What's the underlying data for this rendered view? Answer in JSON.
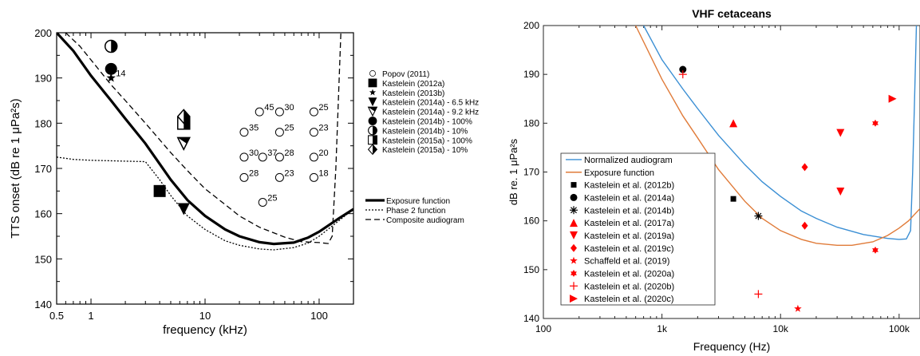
{
  "chart_data": [
    {
      "type": "scatter",
      "title": "",
      "xlabel": "frequency (kHz)",
      "ylabel": "TTS onset (dB re 1 μPa²s)",
      "xscale": "log",
      "xlim": [
        0.5,
        200
      ],
      "ylim": [
        140,
        200
      ],
      "x_ticks": [
        {
          "v": 0.5,
          "label": "0.5"
        },
        {
          "v": 1,
          "label": "1"
        },
        {
          "v": 10,
          "label": "10"
        },
        {
          "v": 100,
          "label": "100"
        }
      ],
      "y_ticks": [
        {
          "v": 140,
          "label": "140"
        },
        {
          "v": 150,
          "label": "150"
        },
        {
          "v": 160,
          "label": "160"
        },
        {
          "v": 170,
          "label": "170"
        },
        {
          "v": 180,
          "label": "180"
        },
        {
          "v": 190,
          "label": "190"
        },
        {
          "v": 200,
          "label": "200"
        }
      ],
      "legend_position": "right",
      "lines": [
        {
          "name": "Exposure function",
          "style": "solid-thick",
          "points": [
            [
              0.5,
              200
            ],
            [
              0.7,
              196
            ],
            [
              1,
              190.5
            ],
            [
              1.5,
              185
            ],
            [
              2,
              181
            ],
            [
              3,
              175.5
            ],
            [
              4,
              171
            ],
            [
              5,
              167.5
            ],
            [
              7,
              163
            ],
            [
              10,
              159.5
            ],
            [
              15,
              156.5
            ],
            [
              20,
              155
            ],
            [
              30,
              153.7
            ],
            [
              40,
              153.3
            ],
            [
              60,
              153.6
            ],
            [
              80,
              154.7
            ],
            [
              100,
              156
            ],
            [
              150,
              159
            ],
            [
              200,
              161
            ]
          ]
        },
        {
          "name": "Phase 2 function",
          "style": "dotted",
          "points": [
            [
              0.5,
              172.5
            ],
            [
              0.7,
              172
            ],
            [
              1,
              171.8
            ],
            [
              2,
              171.6
            ],
            [
              3,
              171.5
            ],
            [
              4,
              167.5
            ],
            [
              5,
              164
            ],
            [
              7,
              159.5
            ],
            [
              10,
              156.5
            ],
            [
              15,
              154
            ],
            [
              20,
              153
            ],
            [
              30,
              152.2
            ],
            [
              40,
              152
            ],
            [
              60,
              152.5
            ],
            [
              80,
              153.5
            ],
            [
              100,
              155
            ],
            [
              150,
              158.5
            ],
            [
              200,
              161
            ]
          ]
        },
        {
          "name": "Composite audiogram",
          "style": "dashed",
          "points": [
            [
              0.6,
              200
            ],
            [
              0.8,
              197
            ],
            [
              1,
              194
            ],
            [
              1.5,
              188.5
            ],
            [
              2,
              185
            ],
            [
              3,
              180
            ],
            [
              5,
              173.5
            ],
            [
              7,
              169.5
            ],
            [
              10,
              165.5
            ],
            [
              15,
              162
            ],
            [
              20,
              159.5
            ],
            [
              30,
              157
            ],
            [
              50,
              154.8
            ],
            [
              70,
              153.8
            ],
            [
              100,
              153.6
            ],
            [
              120,
              153.4
            ],
            [
              130,
              155
            ],
            [
              140,
              170
            ],
            [
              150,
              190
            ],
            [
              155,
              200
            ]
          ]
        }
      ],
      "series": [
        {
          "name": "Popov (2011)",
          "marker": "circle-open",
          "points": [
            {
              "x": 30,
              "y": 182.5,
              "label": "45"
            },
            {
              "x": 45,
              "y": 182.5,
              "label": "30"
            },
            {
              "x": 90,
              "y": 182.5,
              "label": "25"
            },
            {
              "x": 22,
              "y": 178,
              "label": "35"
            },
            {
              "x": 45,
              "y": 178,
              "label": "25"
            },
            {
              "x": 90,
              "y": 178,
              "label": "23"
            },
            {
              "x": 22,
              "y": 172.5,
              "label": "30"
            },
            {
              "x": 32,
              "y": 172.5,
              "label": "37"
            },
            {
              "x": 45,
              "y": 172.5,
              "label": "28"
            },
            {
              "x": 90,
              "y": 172.5,
              "label": "20"
            },
            {
              "x": 22,
              "y": 168,
              "label": "28"
            },
            {
              "x": 45,
              "y": 168,
              "label": "23"
            },
            {
              "x": 90,
              "y": 168,
              "label": "18"
            },
            {
              "x": 32,
              "y": 162.5,
              "label": "25"
            }
          ]
        },
        {
          "name": "Kastelein (2012a)",
          "marker": "square-filled",
          "points": [
            {
              "x": 4,
              "y": 165
            }
          ]
        },
        {
          "name": "Kastelein (2013b)",
          "marker": "star-filled",
          "points": [
            {
              "x": 1.5,
              "y": 190,
              "label": "14"
            }
          ]
        },
        {
          "name": "Kastelein (2014a) - 6.5 kHz",
          "marker": "triangle-down-filled",
          "points": [
            {
              "x": 6.5,
              "y": 161
            }
          ]
        },
        {
          "name": "Kastelein (2014a) - 9.2 kHz",
          "marker": "triangle-down-half",
          "points": [
            {
              "x": 6.5,
              "y": 175.5
            }
          ]
        },
        {
          "name": "Kastelein (2014b) - 100%",
          "marker": "circle-filled",
          "points": [
            {
              "x": 1.5,
              "y": 192
            }
          ]
        },
        {
          "name": "Kastelein (2014b) - 10%",
          "marker": "circle-half",
          "points": [
            {
              "x": 1.5,
              "y": 197
            }
          ]
        },
        {
          "name": "Kastelein (2015a) - 100%",
          "marker": "square-half",
          "points": [
            {
              "x": 6.5,
              "y": 180
            }
          ]
        },
        {
          "name": "Kastelein (2015a) - 10%",
          "marker": "diamond-half",
          "points": [
            {
              "x": 6.5,
              "y": 181.5
            }
          ]
        }
      ]
    },
    {
      "type": "scatter",
      "title": "VHF cetaceans",
      "xlabel": "Frequency (Hz)",
      "ylabel": "dB re. 1 μPa²s",
      "xscale": "log",
      "xlim": [
        100,
        150000
      ],
      "ylim": [
        140,
        200
      ],
      "x_ticks": [
        {
          "v": 100,
          "label": "100"
        },
        {
          "v": 1000,
          "label": "1k"
        },
        {
          "v": 10000,
          "label": "10k"
        },
        {
          "v": 100000,
          "label": "100k"
        }
      ],
      "y_ticks": [
        {
          "v": 140,
          "label": "140"
        },
        {
          "v": 150,
          "label": "150"
        },
        {
          "v": 160,
          "label": "160"
        },
        {
          "v": 170,
          "label": "170"
        },
        {
          "v": 180,
          "label": "180"
        },
        {
          "v": 190,
          "label": "190"
        },
        {
          "v": 200,
          "label": "200"
        }
      ],
      "legend_position": "bottom-left",
      "lines": [
        {
          "name": "Normalized audiogram",
          "color": "#3b8fd4",
          "points": [
            [
              700,
              200
            ],
            [
              1000,
              193
            ],
            [
              1500,
              187
            ],
            [
              2000,
              183
            ],
            [
              3000,
              177.5
            ],
            [
              5000,
              171.5
            ],
            [
              7000,
              168
            ],
            [
              10000,
              165
            ],
            [
              15000,
              162
            ],
            [
              20000,
              160.5
            ],
            [
              30000,
              158.7
            ],
            [
              50000,
              157.2
            ],
            [
              80000,
              156.4
            ],
            [
              100000,
              156.2
            ],
            [
              115000,
              156.3
            ],
            [
              125000,
              158
            ],
            [
              130000,
              170
            ],
            [
              135000,
              185
            ],
            [
              140000,
              200
            ]
          ]
        },
        {
          "name": "Exposure function",
          "color": "#e07b39",
          "points": [
            [
              600,
              200
            ],
            [
              1000,
              189
            ],
            [
              1500,
              181.5
            ],
            [
              2000,
              177
            ],
            [
              3000,
              170.5
            ],
            [
              5000,
              164
            ],
            [
              7000,
              160.5
            ],
            [
              10000,
              158
            ],
            [
              15000,
              156.2
            ],
            [
              20000,
              155.4
            ],
            [
              30000,
              155
            ],
            [
              40000,
              155
            ],
            [
              60000,
              155.7
            ],
            [
              80000,
              157
            ],
            [
              100000,
              158.5
            ],
            [
              120000,
              160
            ],
            [
              150000,
              162.5
            ]
          ]
        }
      ],
      "series": [
        {
          "name": "Kastelein et al. (2012b)",
          "marker": "square",
          "color": "#000000",
          "points": [
            {
              "x": 4000,
              "y": 164.5
            }
          ]
        },
        {
          "name": "Kastelein et al. (2014a)",
          "marker": "circle",
          "color": "#000000",
          "points": [
            {
              "x": 1500,
              "y": 191
            }
          ]
        },
        {
          "name": "Kastelein et al. (2014b)",
          "marker": "asterisk",
          "color": "#000000",
          "points": [
            {
              "x": 6500,
              "y": 161
            }
          ]
        },
        {
          "name": "Kastelein et al. (2017a)",
          "marker": "triangle-up",
          "color": "#ff0000",
          "points": [
            {
              "x": 4000,
              "y": 180
            }
          ]
        },
        {
          "name": "Kastelein et al. (2019a)",
          "marker": "triangle-down",
          "color": "#ff0000",
          "points": [
            {
              "x": 32000,
              "y": 178
            },
            {
              "x": 32000,
              "y": 166
            }
          ]
        },
        {
          "name": "Kastelein et al. (2019c)",
          "marker": "diamond",
          "color": "#ff0000",
          "points": [
            {
              "x": 16000,
              "y": 171
            },
            {
              "x": 16000,
              "y": 159
            }
          ]
        },
        {
          "name": "Schaffeld et al. (2019)",
          "marker": "star",
          "color": "#ff0000",
          "points": [
            {
              "x": 14000,
              "y": 142
            }
          ]
        },
        {
          "name": "Kastelein et al. (2020a)",
          "marker": "hexagram",
          "color": "#ff0000",
          "points": [
            {
              "x": 63000,
              "y": 180
            },
            {
              "x": 63000,
              "y": 154
            }
          ]
        },
        {
          "name": "Kastelein et al. (2020b)",
          "marker": "plus",
          "color": "#ff0000",
          "points": [
            {
              "x": 1500,
              "y": 190
            },
            {
              "x": 6500,
              "y": 145
            }
          ]
        },
        {
          "name": "Kastelein et al. (2020c)",
          "marker": "triangle-right",
          "color": "#ff0000",
          "points": [
            {
              "x": 88000,
              "y": 185
            }
          ]
        }
      ]
    }
  ]
}
